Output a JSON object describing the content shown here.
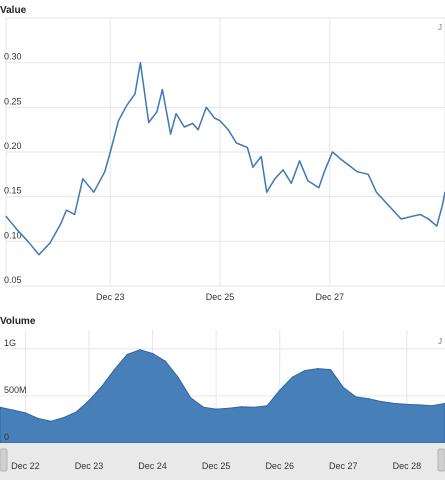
{
  "chart_data": [
    {
      "type": "line",
      "title": "Value",
      "corner_label": "J",
      "xlabel": "",
      "ylabel": "",
      "ylim": [
        0.05,
        0.35
      ],
      "y_ticks": [
        "0.05",
        "0.10",
        "0.15",
        "0.20",
        "0.25",
        "0.30"
      ],
      "y_tick_values": [
        0.05,
        0.1,
        0.15,
        0.2,
        0.25,
        0.3
      ],
      "x_ticks": [
        "Dec 23",
        "Dec 25",
        "Dec 27"
      ],
      "x_tick_days": [
        23,
        25,
        27
      ],
      "xlim_days": [
        21.1,
        29.1
      ],
      "grid": true,
      "color": "#3d78b5",
      "x_days": [
        21.1,
        21.3,
        21.5,
        21.7,
        21.9,
        22.1,
        22.2,
        22.35,
        22.5,
        22.7,
        22.9,
        23.0,
        23.15,
        23.3,
        23.45,
        23.55,
        23.7,
        23.85,
        23.95,
        24.1,
        24.2,
        24.35,
        24.5,
        24.6,
        24.75,
        24.9,
        25.0,
        25.15,
        25.3,
        25.5,
        25.6,
        25.75,
        25.85,
        26.0,
        26.15,
        26.3,
        26.45,
        26.6,
        26.8,
        26.9,
        27.05,
        27.2,
        27.35,
        27.5,
        27.7,
        27.85,
        28.0,
        28.15,
        28.3,
        28.5,
        28.65,
        28.8,
        28.95,
        29.05,
        29.1
      ],
      "values": [
        0.128,
        0.113,
        0.1,
        0.085,
        0.098,
        0.12,
        0.135,
        0.13,
        0.17,
        0.155,
        0.178,
        0.2,
        0.235,
        0.252,
        0.265,
        0.3,
        0.233,
        0.245,
        0.27,
        0.22,
        0.243,
        0.228,
        0.232,
        0.225,
        0.25,
        0.238,
        0.235,
        0.225,
        0.21,
        0.205,
        0.183,
        0.195,
        0.155,
        0.17,
        0.18,
        0.165,
        0.19,
        0.168,
        0.16,
        0.178,
        0.2,
        0.192,
        0.185,
        0.178,
        0.175,
        0.155,
        0.145,
        0.135,
        0.125,
        0.128,
        0.13,
        0.125,
        0.117,
        0.14,
        0.155
      ]
    },
    {
      "type": "area",
      "title": "Volume",
      "corner_label": "J",
      "xlabel": "",
      "ylabel": "",
      "ylim": [
        0,
        1200
      ],
      "y_ticks": [
        "0",
        "500M",
        "1G"
      ],
      "y_tick_values": [
        0,
        500,
        1000
      ],
      "x_ticks": [
        "Dec 22",
        "Dec 23",
        "Dec 24",
        "Dec 25",
        "Dec 26",
        "Dec 27",
        "Dec 28"
      ],
      "x_tick_days": [
        22,
        23,
        24,
        25,
        26,
        27,
        28
      ],
      "xlim_days": [
        21.6,
        28.6
      ],
      "grid": true,
      "color": "#3d78b5",
      "x_days": [
        21.6,
        21.8,
        22.0,
        22.2,
        22.4,
        22.6,
        22.8,
        23.0,
        23.2,
        23.4,
        23.6,
        23.8,
        24.0,
        24.2,
        24.4,
        24.6,
        24.8,
        25.0,
        25.2,
        25.4,
        25.6,
        25.8,
        26.0,
        26.2,
        26.4,
        26.6,
        26.8,
        27.0,
        27.2,
        27.4,
        27.6,
        27.8,
        28.0,
        28.2,
        28.4,
        28.6
      ],
      "values": [
        380,
        350,
        320,
        260,
        230,
        270,
        330,
        450,
        600,
        780,
        940,
        990,
        950,
        870,
        700,
        480,
        380,
        360,
        370,
        385,
        380,
        395,
        560,
        700,
        770,
        790,
        780,
        590,
        490,
        470,
        440,
        420,
        410,
        405,
        395,
        420
      ]
    }
  ]
}
